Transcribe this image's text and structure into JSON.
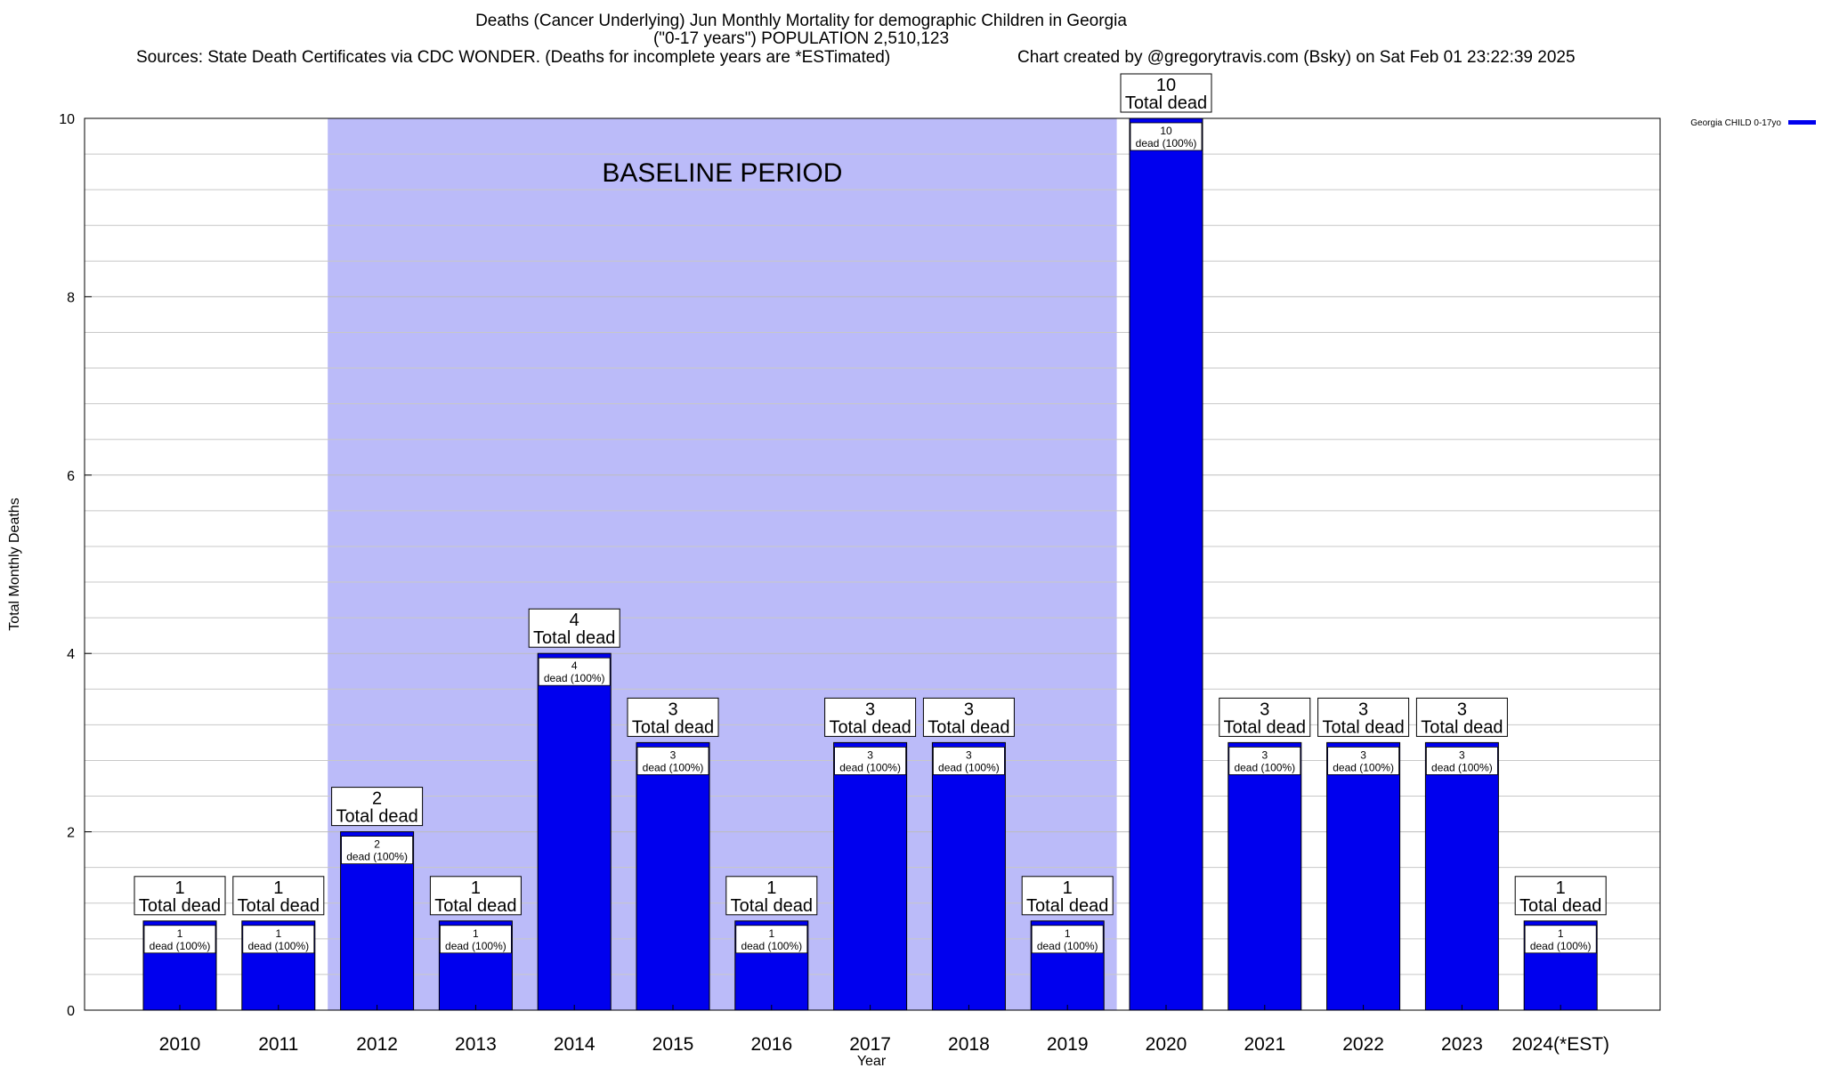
{
  "header": {
    "title_line1": "Deaths (Cancer Underlying) Jun Monthly Mortality for demographic Children in Georgia",
    "title_line2": "(\"0-17 years\") POPULATION 2,510,123",
    "sources": "Sources: State Death Certificates via CDC WONDER. (Deaths for incomplete years are *ESTimated)",
    "credit": "Chart created by @gregorytravis.com (Bsky) on Sat Feb 01 23:22:39 2025"
  },
  "chart_data": {
    "type": "bar",
    "xlabel": "Year",
    "ylabel": "Total Monthly Deaths",
    "ylim": [
      0,
      10
    ],
    "yticks": [
      0,
      2,
      4,
      6,
      8,
      10
    ],
    "grid": true,
    "legend_position": "top-right",
    "categories": [
      "2010",
      "2011",
      "2012",
      "2013",
      "2014",
      "2015",
      "2016",
      "2017",
      "2018",
      "2019",
      "2020",
      "2021",
      "2022",
      "2023",
      "2024(*EST)"
    ],
    "series": [
      {
        "name": "Georgia CHILD 0-17yo",
        "values": [
          1,
          1,
          2,
          1,
          4,
          3,
          1,
          3,
          3,
          1,
          10,
          3,
          3,
          3,
          1
        ],
        "color": "#0000ee"
      }
    ],
    "total_label": "Total dead",
    "inner_label": "dead (100%)",
    "baseline": {
      "label": "BASELINE PERIOD",
      "from": "2012",
      "to": "2019",
      "color": "#bbbbf9"
    }
  }
}
